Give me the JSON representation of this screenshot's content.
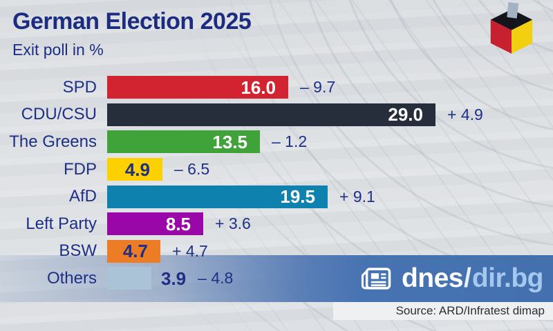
{
  "title": "German Election 2025",
  "subtitle": "Exit poll in %",
  "header_logo": {
    "name": "ballot-box-logo",
    "description": "ballot box cube in German flag colors with ballot slip",
    "colors": {
      "top": "#14141d",
      "left": "#c7202f",
      "right": "#f2cf11",
      "slip": "#a3b3c3"
    }
  },
  "chart_data": {
    "type": "bar",
    "orientation": "horizontal",
    "title": "German Election 2025",
    "subtitle": "Exit poll in %",
    "unit": "%",
    "categories": [
      "SPD",
      "CDU/CSU",
      "The Greens",
      "FDP",
      "AfD",
      "Left Party",
      "BSW",
      "Others"
    ],
    "values": [
      16.0,
      29.0,
      13.5,
      4.9,
      19.5,
      8.5,
      4.7,
      3.9
    ],
    "value_labels": [
      "16.0",
      "29.0",
      "13.5",
      "4.9",
      "19.5",
      "8.5",
      "4.7",
      "3.9"
    ],
    "changes": [
      "– 9.7",
      "+ 4.9",
      "– 1.2",
      "– 6.5",
      "+ 9.1",
      "+ 3.6",
      "+ 4.7",
      "– 4.8"
    ],
    "change_values": [
      -9.7,
      4.9,
      -1.2,
      -6.5,
      9.1,
      3.6,
      4.7,
      -4.8
    ],
    "bar_colors": [
      "#d12430",
      "#252e3a",
      "#3fa339",
      "#fdd000",
      "#0f81af",
      "#9a07a9",
      "#ec7c25",
      "#abc3d6"
    ],
    "value_text_colors": [
      "#ffffff",
      "#ffffff",
      "#ffffff",
      "#1e2f85",
      "#ffffff",
      "#ffffff",
      "#1e2f85",
      "#1e2f85"
    ],
    "value_inside": [
      true,
      true,
      true,
      true,
      true,
      true,
      true,
      false
    ],
    "xlim": [
      0,
      29
    ],
    "grid": false,
    "legend": false,
    "axis_ticks": "none"
  },
  "branding": {
    "icon": "newspaper-icon",
    "name": "dnes",
    "separator": "/",
    "domain": "dir.bg"
  },
  "source": {
    "text": "Source: ARD/Infratest dimap"
  },
  "colors": {
    "text_navy": "#1e2f85",
    "title_navy": "#1c2c80",
    "band_blue": "#4673b2",
    "background": "#dadde0",
    "source_strip": "#eef0f2"
  }
}
